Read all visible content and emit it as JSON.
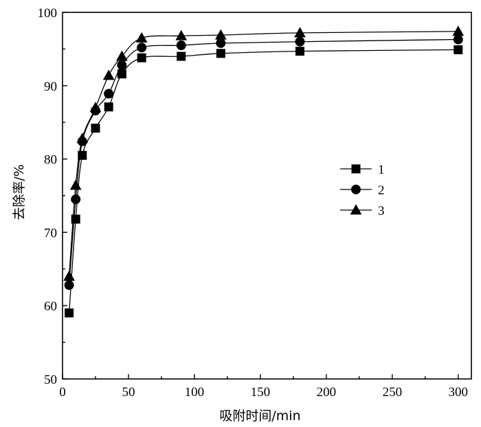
{
  "chart_data": {
    "type": "line",
    "xlabel": "吸附时间/min",
    "ylabel": "去除率/%",
    "xlim": [
      0,
      310
    ],
    "ylim": [
      50,
      100
    ],
    "xticks": [
      0,
      50,
      100,
      150,
      200,
      250,
      300
    ],
    "yticks": [
      50,
      60,
      70,
      80,
      90,
      100
    ],
    "grid": false,
    "legend_position": "right-center",
    "x": [
      5,
      10,
      15,
      25,
      35,
      45,
      60,
      90,
      120,
      180,
      300
    ],
    "series": [
      {
        "name": "1",
        "marker": "square",
        "values": [
          59.0,
          71.8,
          80.5,
          84.2,
          87.1,
          91.6,
          93.8,
          94.0,
          94.4,
          94.7,
          94.9
        ]
      },
      {
        "name": "2",
        "marker": "circle",
        "values": [
          62.8,
          74.5,
          82.4,
          86.6,
          88.9,
          92.8,
          95.2,
          95.5,
          95.8,
          96.0,
          96.3
        ]
      },
      {
        "name": "3",
        "marker": "triangle",
        "values": [
          64.0,
          76.4,
          82.8,
          87.0,
          91.4,
          94.0,
          96.5,
          96.8,
          96.9,
          97.2,
          97.4
        ]
      }
    ]
  }
}
